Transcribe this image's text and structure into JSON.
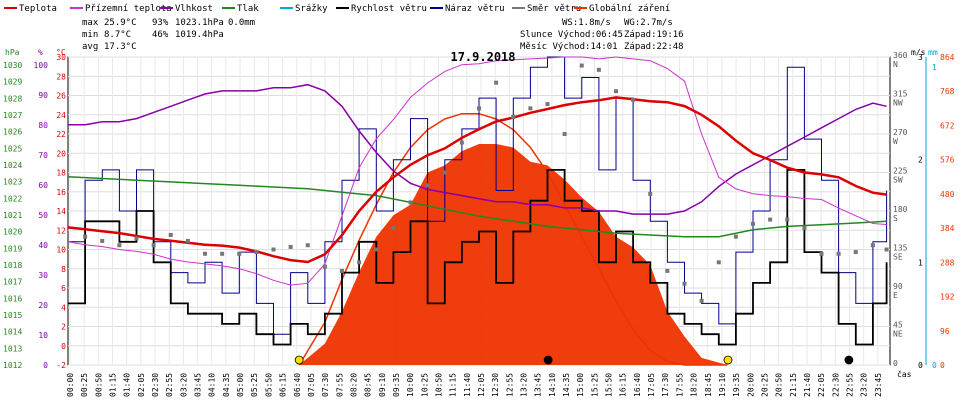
{
  "legend": [
    {
      "label": "Teplota",
      "color": "#dd0000"
    },
    {
      "label": "Přízemní teplota",
      "color": "#cc33cc"
    },
    {
      "label": "Vlhkost",
      "color": "#8800aa"
    },
    {
      "label": "Tlak",
      "color": "#22881f"
    },
    {
      "label": "Srážky",
      "color": "#00aacc"
    },
    {
      "label": "Rychlost větru",
      "color": "#000000"
    },
    {
      "label": "Náraz větru",
      "color": "#000088"
    },
    {
      "label": "Směr větru",
      "color": "#777777"
    },
    {
      "label": "Globální záření",
      "color": "#ee3300"
    }
  ],
  "stats": {
    "max_label": "max",
    "max_temp": "25.9°C",
    "max_hum": "93%",
    "max_press": "1023.1hPa",
    "max_rain": "0.0mm",
    "min_label": "min",
    "min_temp": "8.7°C",
    "min_hum": "46%",
    "min_press": "1019.4hPa",
    "avg_label": "avg",
    "avg_temp": "17.3°C"
  },
  "wind_info": {
    "ws": "WS:1.8m/s",
    "wg": "WG:2.7m/s"
  },
  "sun_moon": {
    "sun": "Slunce Východ:06:45",
    "sun_set": "Západ:19:16",
    "moon": "Měsíc  Východ:14:01",
    "moon_set": "Západ:22:48"
  },
  "title": "17.9.2018",
  "axes": {
    "hpa_unit": "hPa",
    "pct_unit": "%",
    "temp_unit": "°C",
    "ms_unit": "m/s",
    "mm_unit": "mm",
    "x_unit": "čas",
    "hpa_ticks": [
      "1030",
      "1029",
      "1028",
      "1027",
      "1026",
      "1025",
      "1024",
      "1023",
      "1022",
      "1021",
      "1020",
      "1019",
      "1018",
      "1017",
      "1016",
      "1015",
      "1014",
      "1013",
      "1012"
    ],
    "pct_ticks": [
      "100",
      "90",
      "80",
      "70",
      "60",
      "50",
      "40",
      "30",
      "20",
      "10",
      "0"
    ],
    "temp_ticks": [
      "30",
      "28",
      "26",
      "24",
      "22",
      "20",
      "18",
      "16",
      "14",
      "12",
      "10",
      "8",
      "6",
      "4",
      "2",
      "0",
      "-2"
    ],
    "dir_ticks": [
      {
        "v": 360,
        "deg": "360",
        "dir": "N"
      },
      {
        "v": 315,
        "deg": "315",
        "dir": "NW"
      },
      {
        "v": 270,
        "deg": "270",
        "dir": "W"
      },
      {
        "v": 225,
        "deg": "225",
        "dir": "SW"
      },
      {
        "v": 180,
        "deg": "180",
        "dir": "S"
      },
      {
        "v": 135,
        "deg": "135",
        "dir": "SE"
      },
      {
        "v": 90,
        "deg": "90",
        "dir": "E"
      },
      {
        "v": 45,
        "deg": "45",
        "dir": "NE"
      },
      {
        "v": 0,
        "deg": "0",
        "dir": ""
      }
    ],
    "ms_ticks": [
      "3",
      "2",
      "1",
      "0"
    ],
    "mm_ticks": [
      "1",
      "0"
    ],
    "rad_ticks": [
      "864",
      "768",
      "672",
      "576",
      "480",
      "384",
      "288",
      "192",
      "96",
      "0"
    ],
    "x_ticks": [
      "00:00",
      "00:25",
      "00:50",
      "01:15",
      "01:40",
      "02:05",
      "02:30",
      "02:55",
      "03:20",
      "03:45",
      "04:10",
      "04:35",
      "05:00",
      "05:25",
      "05:50",
      "06:15",
      "06:40",
      "07:05",
      "07:30",
      "07:55",
      "08:20",
      "08:45",
      "09:10",
      "09:35",
      "10:00",
      "10:25",
      "10:50",
      "11:15",
      "11:40",
      "12:05",
      "12:30",
      "12:55",
      "13:20",
      "13:45",
      "14:10",
      "14:35",
      "15:00",
      "15:25",
      "15:50",
      "16:15",
      "16:40",
      "17:05",
      "17:30",
      "17:55",
      "18:20",
      "18:45",
      "19:10",
      "19:35",
      "20:00",
      "20:25",
      "20:50",
      "21:15",
      "21:40",
      "22:05",
      "22:30",
      "22:55",
      "23:20",
      "23:45"
    ]
  },
  "chart_data": {
    "type": "line",
    "title": "17.9.2018",
    "x_unit": "čas",
    "x_hours_range": [
      0,
      24
    ],
    "series": [
      {
        "name": "Teplota",
        "axis": "°C",
        "color": "#dd0000",
        "x": [
          0,
          0.5,
          1,
          1.5,
          2,
          2.5,
          3,
          3.5,
          4,
          4.5,
          5,
          5.5,
          6,
          6.5,
          7,
          7.5,
          8,
          8.5,
          9,
          9.5,
          10,
          10.5,
          11,
          11.5,
          12,
          12.5,
          13,
          13.5,
          14,
          14.5,
          15,
          15.5,
          16,
          16.5,
          17,
          17.5,
          18,
          18.5,
          19,
          19.5,
          20,
          20.5,
          21,
          21.5,
          22,
          22.5,
          23,
          23.5,
          23.9
        ],
        "y": [
          12.3,
          12.1,
          11.9,
          11.7,
          11.4,
          11.1,
          10.9,
          10.7,
          10.5,
          10.4,
          10.2,
          9.8,
          9.3,
          8.9,
          8.7,
          9.5,
          11.5,
          14.0,
          16.0,
          17.5,
          18.8,
          19.8,
          20.5,
          21.6,
          22.5,
          23.3,
          23.7,
          24.2,
          24.6,
          25.0,
          25.3,
          25.5,
          25.8,
          25.6,
          25.4,
          25.3,
          24.9,
          24.0,
          22.8,
          21.3,
          20.0,
          19.3,
          18.5,
          18.0,
          17.8,
          17.5,
          16.6,
          15.9,
          15.7
        ]
      },
      {
        "name": "Přízemní teplota",
        "axis": "°C",
        "color": "#cc33cc",
        "x": [
          0,
          0.5,
          1,
          1.5,
          2,
          2.5,
          3,
          3.5,
          4,
          4.5,
          5,
          5.5,
          6,
          6.5,
          7,
          7.5,
          8,
          8.5,
          9,
          9.5,
          10,
          10.5,
          11,
          11.5,
          12,
          12.5,
          13,
          13.5,
          14,
          14.5,
          15,
          15.5,
          16,
          16.5,
          17,
          17.5,
          18,
          18.5,
          19,
          19.5,
          20,
          20.5,
          21,
          21.5,
          22,
          22.5,
          23,
          23.5,
          23.9
        ],
        "y": [
          10.8,
          10.5,
          10.3,
          10.0,
          9.8,
          9.5,
          9.0,
          8.7,
          8.5,
          8.3,
          8.0,
          7.5,
          6.8,
          6.3,
          6.5,
          8.5,
          13.5,
          18.5,
          21.5,
          23.5,
          25.8,
          27.3,
          28.5,
          29.2,
          29.3,
          29.6,
          29.7,
          29.8,
          29.9,
          30.0,
          30.0,
          29.8,
          30.0,
          29.8,
          29.6,
          28.8,
          27.5,
          22.0,
          17.5,
          16.3,
          15.8,
          15.6,
          15.5,
          15.3,
          15.2,
          14.3,
          13.5,
          12.7,
          12.6
        ]
      },
      {
        "name": "Vlhkost",
        "axis": "%",
        "color": "#8800aa",
        "x": [
          0,
          0.5,
          1,
          1.5,
          2,
          2.5,
          3,
          3.5,
          4,
          4.5,
          5,
          5.5,
          6,
          6.5,
          7,
          7.5,
          8,
          8.5,
          9,
          9.5,
          10,
          10.5,
          11,
          11.5,
          12,
          12.5,
          13,
          13.5,
          14,
          14.5,
          15,
          15.5,
          16,
          16.5,
          17,
          17.5,
          18,
          18.5,
          19,
          19.5,
          20,
          20.5,
          21,
          21.5,
          22,
          22.5,
          23,
          23.5,
          23.9
        ],
        "y": [
          78,
          78,
          79,
          79,
          80,
          82,
          84,
          86,
          88,
          89,
          89,
          89,
          90,
          90,
          91,
          89,
          84,
          76,
          69,
          63,
          59,
          57,
          56,
          55,
          54,
          53,
          53,
          52,
          52,
          51,
          51,
          50,
          50,
          49,
          49,
          49,
          50,
          53,
          58,
          62,
          65,
          68,
          71,
          74,
          77,
          80,
          83,
          85,
          84
        ]
      },
      {
        "name": "Tlak",
        "axis": "hPa",
        "color": "#22881f",
        "x": [
          0,
          1,
          2,
          3,
          4,
          5,
          6,
          7,
          8,
          9,
          10,
          11,
          12,
          13,
          14,
          15,
          16,
          17,
          18,
          19,
          20,
          21,
          22,
          23,
          23.9
        ],
        "y": [
          1023.0,
          1022.9,
          1022.8,
          1022.7,
          1022.6,
          1022.5,
          1022.4,
          1022.3,
          1022.1,
          1021.9,
          1021.5,
          1021.1,
          1020.7,
          1020.4,
          1020.1,
          1019.9,
          1019.7,
          1019.6,
          1019.5,
          1019.5,
          1019.9,
          1020.1,
          1020.2,
          1020.3,
          1020.4
        ]
      },
      {
        "name": "Rychlost větru",
        "axis": "m/s",
        "color": "#000000",
        "x": [
          0,
          0.5,
          1,
          1.5,
          2,
          2.5,
          3,
          3.5,
          4,
          4.5,
          5,
          5.5,
          6,
          6.5,
          7,
          7.5,
          8,
          8.5,
          9,
          9.5,
          10,
          10.5,
          11,
          11.5,
          12,
          12.5,
          13,
          13.5,
          14,
          14.5,
          15,
          15.5,
          16,
          16.5,
          17,
          17.5,
          18,
          18.5,
          19,
          19.5,
          20,
          20.5,
          21,
          21.5,
          22,
          22.5,
          23,
          23.5,
          23.9
        ],
        "y": [
          0.6,
          1.4,
          1.4,
          1.2,
          1.5,
          1.0,
          0.6,
          0.5,
          0.5,
          0.4,
          0.5,
          0.3,
          0.2,
          0.4,
          0.3,
          0.5,
          0.9,
          1.2,
          0.8,
          1.1,
          1.4,
          0.6,
          1.0,
          1.2,
          1.3,
          0.8,
          1.3,
          1.6,
          1.9,
          1.6,
          1.5,
          1.0,
          1.3,
          1.0,
          0.8,
          0.5,
          0.4,
          0.3,
          0.2,
          0.5,
          0.8,
          1.0,
          1.9,
          1.1,
          0.9,
          0.4,
          0.2,
          0.6,
          1.0
        ]
      },
      {
        "name": "Náraz větru",
        "axis": "m/s",
        "color": "#000088",
        "x": [
          0,
          0.5,
          1,
          1.5,
          2,
          2.5,
          3,
          3.5,
          4,
          4.5,
          5,
          5.5,
          6,
          6.5,
          7,
          7.5,
          8,
          8.5,
          9,
          9.5,
          10,
          10.5,
          11,
          11.5,
          12,
          12.5,
          13,
          13.5,
          14,
          14.5,
          15,
          15.5,
          16,
          16.5,
          17,
          17.5,
          18,
          18.5,
          19,
          19.5,
          20,
          20.5,
          21,
          21.5,
          22,
          22.5,
          23,
          23.5,
          23.9
        ],
        "y": [
          1.2,
          1.8,
          1.9,
          1.5,
          1.9,
          1.2,
          0.9,
          0.8,
          1.0,
          0.7,
          1.1,
          0.6,
          0.3,
          0.9,
          0.6,
          1.2,
          1.8,
          2.3,
          1.5,
          2.0,
          2.4,
          1.4,
          2.0,
          2.3,
          2.6,
          1.7,
          2.6,
          2.9,
          3.0,
          2.6,
          2.8,
          1.9,
          2.6,
          1.8,
          1.4,
          1.0,
          0.7,
          0.6,
          0.4,
          1.1,
          1.5,
          2.0,
          2.9,
          2.2,
          1.8,
          0.9,
          0.6,
          1.2,
          1.7
        ]
      },
      {
        "name": "Globální záření",
        "axis": "W/m²",
        "color": "#ee3300",
        "x": [
          6.75,
          7.5,
          8,
          8.5,
          9,
          9.5,
          10,
          10.5,
          11,
          11.5,
          12,
          12.5,
          13,
          13.5,
          14,
          14.5,
          15,
          15.5,
          16,
          16.5,
          17,
          17.5,
          18,
          18.5,
          19.25
        ],
        "y": [
          0,
          60,
          150,
          260,
          360,
          420,
          450,
          540,
          560,
          600,
          620,
          620,
          610,
          570,
          560,
          520,
          470,
          430,
          360,
          330,
          280,
          150,
          80,
          20,
          0
        ]
      },
      {
        "name": "Globální záření (teoretické)",
        "axis": "W/m²",
        "color": "#ee3300",
        "x": [
          6.75,
          7.5,
          8,
          8.5,
          9,
          9.5,
          10,
          10.5,
          11,
          11.5,
          12,
          12.5,
          13,
          13.5,
          14,
          14.5,
          15,
          15.5,
          16,
          16.5,
          17,
          17.5,
          18,
          18.5,
          19.25
        ],
        "y": [
          0,
          120,
          240,
          350,
          450,
          540,
          610,
          660,
          690,
          705,
          705,
          690,
          660,
          610,
          540,
          450,
          360,
          270,
          180,
          100,
          40,
          10,
          0,
          0,
          0
        ]
      }
    ],
    "wind_direction_points": [
      {
        "x": 0.5,
        "y": 150
      },
      {
        "x": 1.0,
        "y": 145
      },
      {
        "x": 1.5,
        "y": 140
      },
      {
        "x": 2.0,
        "y": 148
      },
      {
        "x": 2.5,
        "y": 140
      },
      {
        "x": 3.0,
        "y": 152
      },
      {
        "x": 3.5,
        "y": 145
      },
      {
        "x": 4.0,
        "y": 130
      },
      {
        "x": 4.5,
        "y": 130
      },
      {
        "x": 5.0,
        "y": 130
      },
      {
        "x": 5.5,
        "y": 132
      },
      {
        "x": 6.0,
        "y": 135
      },
      {
        "x": 6.5,
        "y": 138
      },
      {
        "x": 7.0,
        "y": 140
      },
      {
        "x": 7.5,
        "y": 115
      },
      {
        "x": 8.0,
        "y": 110
      },
      {
        "x": 8.5,
        "y": 120
      },
      {
        "x": 9.0,
        "y": 135
      },
      {
        "x": 9.5,
        "y": 160
      },
      {
        "x": 10.0,
        "y": 190
      },
      {
        "x": 10.5,
        "y": 210
      },
      {
        "x": 11.0,
        "y": 225
      },
      {
        "x": 11.5,
        "y": 260
      },
      {
        "x": 12.0,
        "y": 300
      },
      {
        "x": 12.5,
        "y": 330
      },
      {
        "x": 13.0,
        "y": 290
      },
      {
        "x": 13.5,
        "y": 300
      },
      {
        "x": 14.0,
        "y": 305
      },
      {
        "x": 14.5,
        "y": 270
      },
      {
        "x": 15.0,
        "y": 350
      },
      {
        "x": 15.5,
        "y": 345
      },
      {
        "x": 16.0,
        "y": 320
      },
      {
        "x": 16.5,
        "y": 310
      },
      {
        "x": 17.0,
        "y": 200
      },
      {
        "x": 17.5,
        "y": 110
      },
      {
        "x": 18.0,
        "y": 95
      },
      {
        "x": 18.5,
        "y": 75
      },
      {
        "x": 19.0,
        "y": 120
      },
      {
        "x": 19.5,
        "y": 150
      },
      {
        "x": 20.0,
        "y": 165
      },
      {
        "x": 20.5,
        "y": 170
      },
      {
        "x": 21.0,
        "y": 170
      },
      {
        "x": 21.5,
        "y": 160
      },
      {
        "x": 22.0,
        "y": 130
      },
      {
        "x": 22.5,
        "y": 130
      },
      {
        "x": 23.0,
        "y": 132
      },
      {
        "x": 23.5,
        "y": 140
      },
      {
        "x": 23.9,
        "y": 135
      }
    ],
    "markers": [
      {
        "type": "sunrise",
        "x": 6.75,
        "color": "#ffdd00"
      },
      {
        "type": "sunset",
        "x": 19.27,
        "color": "#ffdd00"
      },
      {
        "type": "moonrise",
        "x": 14.02,
        "color": "#000000"
      },
      {
        "type": "moonset",
        "x": 22.8,
        "color": "#000000"
      }
    ],
    "ranges": {
      "temp": [
        -2,
        30
      ],
      "hum": [
        0,
        100
      ],
      "press": [
        1012,
        1030
      ],
      "wind": [
        0,
        3
      ],
      "rain": [
        0,
        1
      ],
      "rad": [
        0,
        864
      ],
      "dir": [
        0,
        360
      ]
    },
    "grid": true
  }
}
